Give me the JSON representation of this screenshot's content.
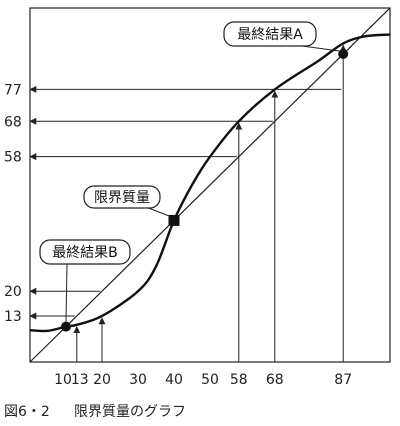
{
  "chart_data": {
    "type": "line",
    "title": "",
    "xlabel": "",
    "ylabel": "",
    "x_ticks": [
      10,
      13,
      20,
      30,
      40,
      50,
      58,
      68,
      87
    ],
    "y_ticks": [
      13,
      20,
      58,
      68,
      77
    ],
    "xlim": [
      0,
      100
    ],
    "ylim": [
      0,
      100
    ],
    "grid": false,
    "series": [
      {
        "kind": "curve",
        "x": [
          0,
          5,
          10,
          13,
          20,
          30,
          35,
          40,
          45,
          50,
          58,
          68,
          80,
          87,
          93,
          100
        ],
        "y": [
          9,
          8.8,
          10,
          10.5,
          13,
          20,
          27,
          40,
          50,
          58,
          68,
          77,
          85,
          90,
          92,
          92.5
        ]
      },
      {
        "kind": "diagonal",
        "x": [
          0,
          100
        ],
        "y": [
          0,
          100
        ]
      }
    ],
    "mappings": [
      {
        "from_x": 13,
        "to_y": 13
      },
      {
        "from_x": 20,
        "to_y": 20
      },
      {
        "from_x": 58,
        "to_y": 58
      },
      {
        "from_x": 68,
        "to_y": 68
      },
      {
        "from_x": 87,
        "to_y": 77
      }
    ],
    "points": [
      {
        "x": 10,
        "y": 10,
        "marker": "circle",
        "label": "最終結果B"
      },
      {
        "x": 40,
        "y": 40,
        "marker": "square",
        "label": "限界質量"
      },
      {
        "x": 87,
        "y": 87,
        "marker": "circle",
        "label": "最終結果A"
      }
    ],
    "annotations": [
      {
        "text": "最終結果A",
        "x": 87,
        "y": 87
      },
      {
        "text": "限界質量",
        "x": 40,
        "y": 40
      },
      {
        "text": "最終結果B",
        "x": 10,
        "y": 10
      }
    ]
  },
  "caption": {
    "number": "図6・2",
    "text": "限界質量のグラフ"
  }
}
